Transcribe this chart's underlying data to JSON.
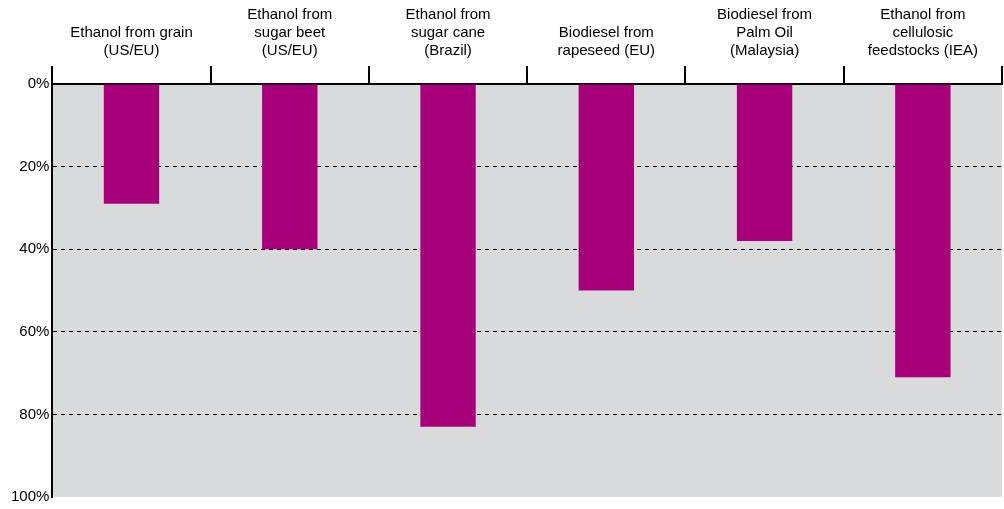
{
  "chart_data": {
    "type": "bar",
    "categories": [
      "Ethanol from grain (US/EU)",
      "Ethanol from sugar beet (US/EU)",
      "Ethanol from sugar cane (Brazil)",
      "Biodiesel from rapeseed (EU)",
      "Biodiesel from Palm Oil (Malaysia)",
      "Ethanol from cellulosic feedstocks (IEA)"
    ],
    "values": [
      29,
      40,
      83,
      50,
      38,
      71
    ],
    "color": "#a8007a",
    "ylim": [
      100,
      0
    ],
    "yticks": [
      {
        "value": 0,
        "label": "0%"
      },
      {
        "value": 20,
        "label": "20%"
      },
      {
        "value": 40,
        "label": "40%"
      },
      {
        "value": 60,
        "label": "60%"
      },
      {
        "value": 80,
        "label": "80%"
      },
      {
        "value": 100,
        "label": "100%"
      }
    ],
    "grid": "y",
    "line_style": "dashed"
  }
}
